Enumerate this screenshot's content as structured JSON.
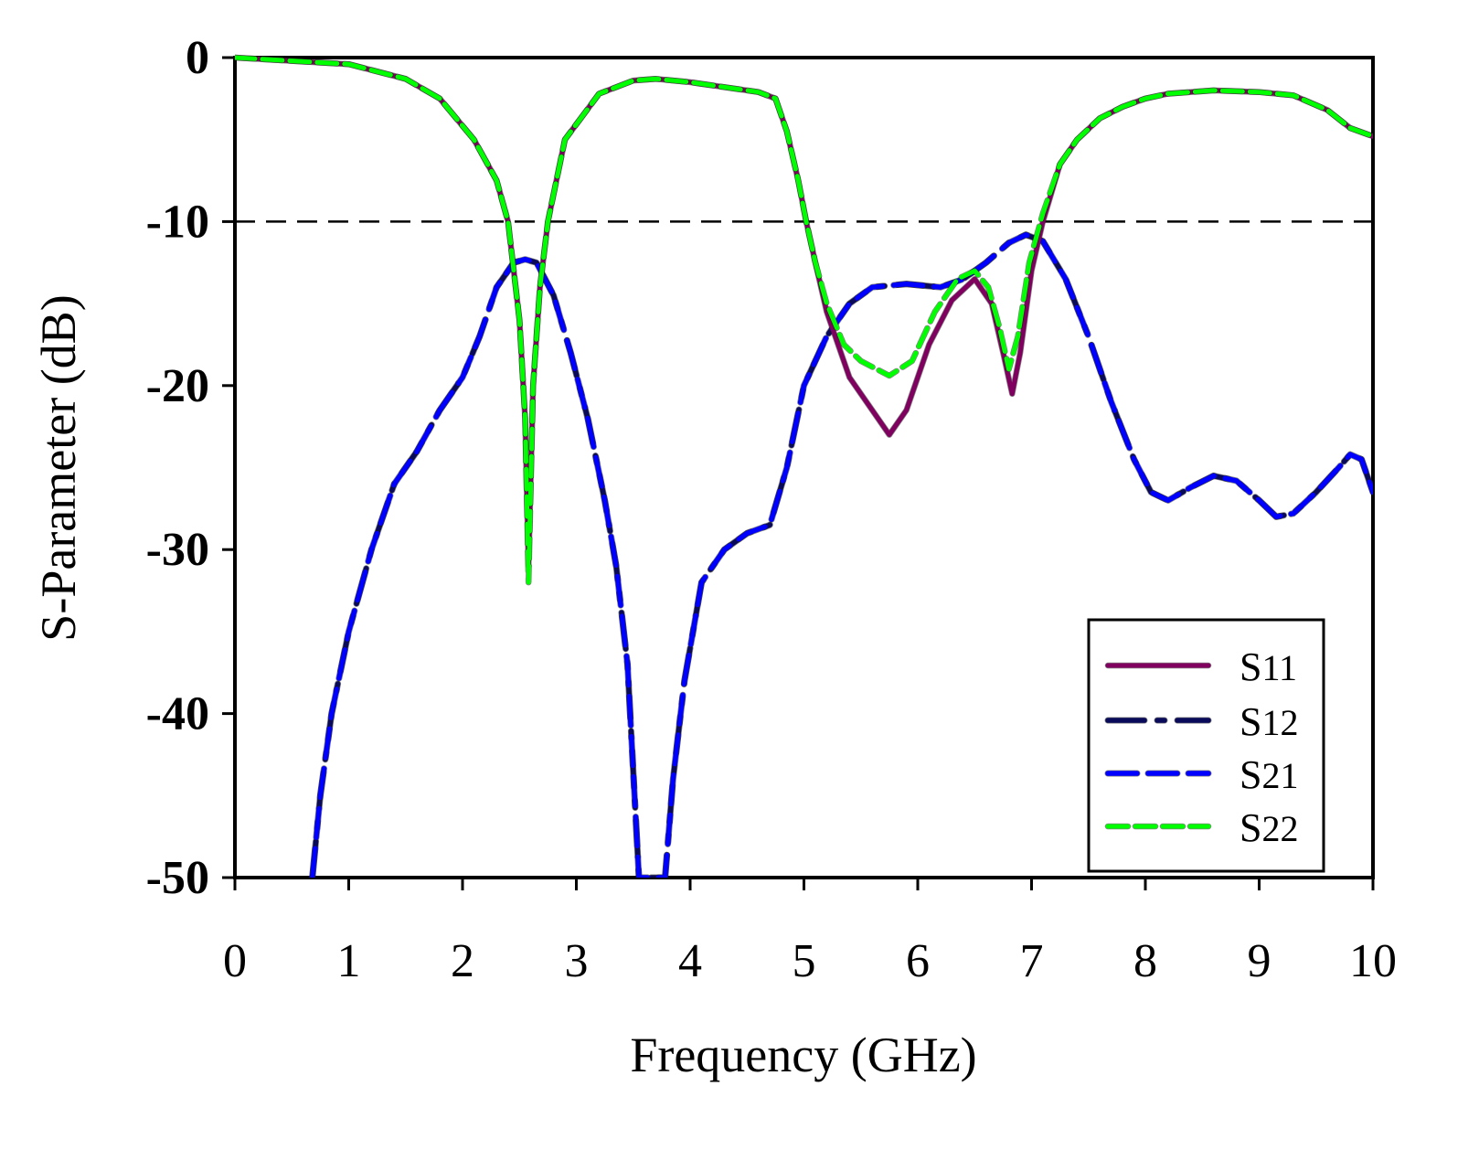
{
  "chart_data": {
    "type": "line",
    "title": "",
    "xlabel": "Frequency (GHz)",
    "ylabel": "S-Parameter (dB)",
    "xlim": [
      0,
      10
    ],
    "ylim": [
      -50,
      0
    ],
    "xticks": [
      "0",
      "1",
      "2",
      "3",
      "4",
      "5",
      "6",
      "7",
      "8",
      "9",
      "10"
    ],
    "yticks": [
      "0",
      "-10",
      "-20",
      "-30",
      "-40",
      "-50"
    ],
    "grid": false,
    "legend_position": "lower right",
    "reference_line": {
      "y": -10,
      "style": "dashed",
      "color": "#000000"
    },
    "series": [
      {
        "name": "S11",
        "color": "#800060",
        "style": "solid",
        "x": [
          0,
          0.5,
          1,
          1.5,
          1.8,
          2.1,
          2.3,
          2.4,
          2.5,
          2.55,
          2.58,
          2.62,
          2.68,
          2.75,
          2.9,
          3.2,
          3.5,
          3.7,
          4.0,
          4.3,
          4.6,
          4.75,
          4.85,
          4.95,
          5.02,
          5.1,
          5.2,
          5.4,
          5.6,
          5.75,
          5.9,
          6.1,
          6.3,
          6.5,
          6.65,
          6.75,
          6.83,
          6.9,
          7.0,
          7.1,
          7.25,
          7.4,
          7.6,
          7.8,
          8.0,
          8.2,
          8.6,
          9.0,
          9.3,
          9.6,
          9.8,
          10
        ],
        "y": [
          0,
          -0.2,
          -0.4,
          -1.3,
          -2.5,
          -5,
          -7.5,
          -10,
          -16,
          -22,
          -31,
          -20,
          -14,
          -10,
          -5,
          -2.2,
          -1.4,
          -1.3,
          -1.5,
          -1.8,
          -2.1,
          -2.5,
          -4.5,
          -7.5,
          -10,
          -12.5,
          -15.5,
          -19.5,
          -21.5,
          -23,
          -21.5,
          -17.5,
          -14.8,
          -13.5,
          -15,
          -18,
          -20.5,
          -18,
          -13,
          -10,
          -6.5,
          -5,
          -3.7,
          -3,
          -2.5,
          -2.2,
          -2,
          -2.1,
          -2.3,
          -3.2,
          -4.3,
          -4.8
        ]
      },
      {
        "name": "S12",
        "color": "#0a0a5a",
        "style": "dash-dot",
        "x": [
          0.68,
          0.75,
          0.85,
          1.0,
          1.2,
          1.4,
          1.6,
          1.8,
          2.0,
          2.15,
          2.3,
          2.45,
          2.55,
          2.65,
          2.8,
          2.95,
          3.1,
          3.25,
          3.35,
          3.45,
          3.55,
          3.78,
          3.85,
          3.95,
          4.1,
          4.3,
          4.5,
          4.7,
          4.85,
          5.0,
          5.2,
          5.4,
          5.6,
          5.9,
          6.2,
          6.4,
          6.6,
          6.8,
          6.95,
          7.1,
          7.3,
          7.5,
          7.7,
          7.9,
          8.05,
          8.2,
          8.4,
          8.6,
          8.8,
          9.0,
          9.15,
          9.3,
          9.5,
          9.7,
          9.8,
          9.9,
          10
        ],
        "y": [
          -50,
          -45,
          -40,
          -35,
          -30,
          -26,
          -24,
          -21.5,
          -19.5,
          -17,
          -14,
          -12.5,
          -12.3,
          -12.5,
          -14.5,
          -18,
          -22,
          -27,
          -31,
          -37,
          -50,
          -50,
          -44,
          -38,
          -32,
          -30,
          -29,
          -28.5,
          -25,
          -20,
          -17,
          -15,
          -14,
          -13.8,
          -14,
          -13.5,
          -12.5,
          -11.3,
          -10.8,
          -11.2,
          -13.5,
          -17,
          -21,
          -24.5,
          -26.5,
          -27,
          -26.2,
          -25.5,
          -25.8,
          -27,
          -28,
          -27.8,
          -26.5,
          -25,
          -24.2,
          -24.5,
          -26.5
        ]
      },
      {
        "name": "S21",
        "color": "#0000ff",
        "style": "dashed",
        "x": [
          0.68,
          0.75,
          0.85,
          1.0,
          1.2,
          1.4,
          1.6,
          1.8,
          2.0,
          2.15,
          2.3,
          2.45,
          2.55,
          2.65,
          2.8,
          2.95,
          3.1,
          3.25,
          3.35,
          3.45,
          3.55,
          3.78,
          3.85,
          3.95,
          4.1,
          4.3,
          4.5,
          4.7,
          4.85,
          5.0,
          5.2,
          5.4,
          5.6,
          5.9,
          6.2,
          6.4,
          6.6,
          6.8,
          6.95,
          7.1,
          7.3,
          7.5,
          7.7,
          7.9,
          8.05,
          8.2,
          8.4,
          8.6,
          8.8,
          9.0,
          9.15,
          9.3,
          9.5,
          9.7,
          9.8,
          9.9,
          10
        ],
        "y": [
          -50,
          -45,
          -40,
          -35,
          -30,
          -26,
          -24,
          -21.5,
          -19.5,
          -17,
          -14,
          -12.5,
          -12.3,
          -12.5,
          -14.5,
          -18,
          -22,
          -27,
          -31,
          -37,
          -50,
          -50,
          -44,
          -38,
          -32,
          -30,
          -29,
          -28.5,
          -25,
          -20,
          -17,
          -15,
          -14,
          -13.8,
          -14,
          -13.5,
          -12.5,
          -11.3,
          -10.8,
          -11.2,
          -13.5,
          -17,
          -21,
          -24.5,
          -26.5,
          -27,
          -26.2,
          -25.5,
          -25.8,
          -27,
          -28,
          -27.8,
          -26.5,
          -25,
          -24.2,
          -24.5,
          -26.5
        ]
      },
      {
        "name": "S22",
        "color": "#00ff00",
        "style": "short-dashed",
        "x": [
          0,
          0.5,
          1,
          1.5,
          1.8,
          2.1,
          2.3,
          2.4,
          2.5,
          2.55,
          2.58,
          2.62,
          2.68,
          2.75,
          2.9,
          3.2,
          3.5,
          3.7,
          4.0,
          4.3,
          4.6,
          4.75,
          4.85,
          4.95,
          5.02,
          5.1,
          5.2,
          5.35,
          5.5,
          5.75,
          5.95,
          6.15,
          6.35,
          6.5,
          6.62,
          6.72,
          6.8,
          6.88,
          6.98,
          7.1,
          7.25,
          7.4,
          7.6,
          7.8,
          8.0,
          8.2,
          8.6,
          9.0,
          9.3,
          9.6,
          9.8,
          10
        ],
        "y": [
          0,
          -0.2,
          -0.4,
          -1.3,
          -2.5,
          -5,
          -7.5,
          -10,
          -16,
          -22,
          -32,
          -20,
          -14,
          -10,
          -5,
          -2.2,
          -1.4,
          -1.3,
          -1.5,
          -1.8,
          -2.1,
          -2.5,
          -4.5,
          -7.5,
          -10,
          -12.5,
          -15,
          -17.5,
          -18.5,
          -19.4,
          -18.5,
          -15.5,
          -13.5,
          -13,
          -14,
          -16.5,
          -19,
          -17,
          -12.5,
          -9.5,
          -6.5,
          -5,
          -3.7,
          -3,
          -2.5,
          -2.2,
          -2,
          -2.1,
          -2.3,
          -3.2,
          -4.3,
          -4.8
        ]
      }
    ]
  },
  "legend": {
    "items": [
      {
        "label_main": "S",
        "label_sub": "11"
      },
      {
        "label_main": "S",
        "label_sub": "12"
      },
      {
        "label_main": "S",
        "label_sub": "21"
      },
      {
        "label_main": "S",
        "label_sub": "22"
      }
    ]
  }
}
